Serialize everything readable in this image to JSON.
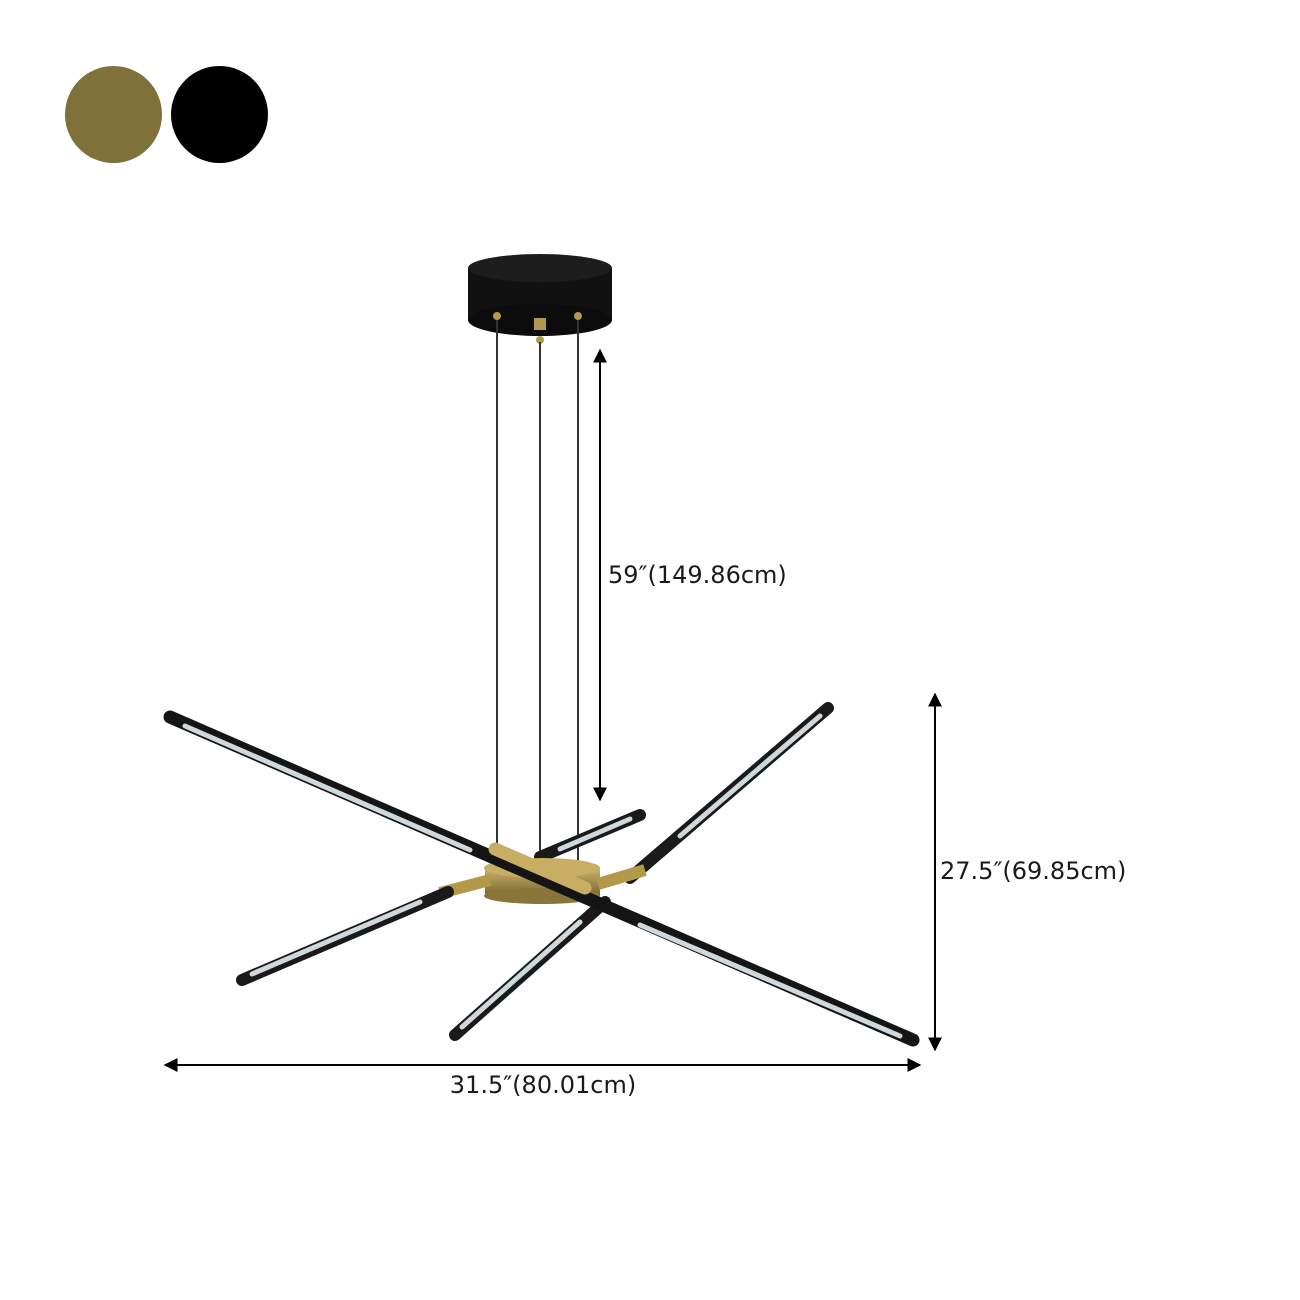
{
  "color_options": [
    {
      "name": "gold",
      "color": "#80703a"
    },
    {
      "name": "black",
      "color": "#000000"
    }
  ],
  "dimensions": {
    "cord_length": "59″(149.86cm)",
    "height": "27.5″(69.85cm)",
    "width": "31.5″(80.01cm)"
  },
  "colors": {
    "fixture_black": "#151515",
    "brass": "#b39a4a",
    "diffuser": "#cfd8dd"
  }
}
